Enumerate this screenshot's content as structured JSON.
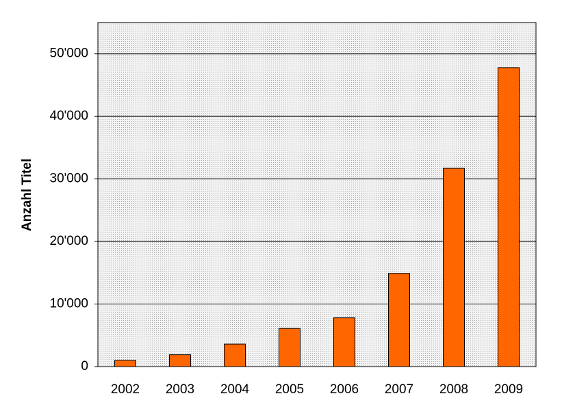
{
  "chart_data": {
    "type": "bar",
    "y_label": "Anzahl Titel",
    "categories": [
      "2002",
      "2003",
      "2004",
      "2005",
      "2006",
      "2007",
      "2008",
      "2009"
    ],
    "values": [
      1000,
      1900,
      3600,
      6100,
      7800,
      14900,
      31700,
      47800
    ],
    "color": "#ff6600",
    "ylim": [
      0,
      55000
    ],
    "yticks": [
      0,
      {
        "value": 10000,
        "label": "10'000"
      },
      {
        "value": 20000,
        "label": "20'000"
      },
      {
        "value": 30000,
        "label": "30'000"
      },
      {
        "value": 40000,
        "label": "40'000"
      },
      {
        "value": 50000,
        "label": "50'000"
      }
    ],
    "grid": true
  }
}
